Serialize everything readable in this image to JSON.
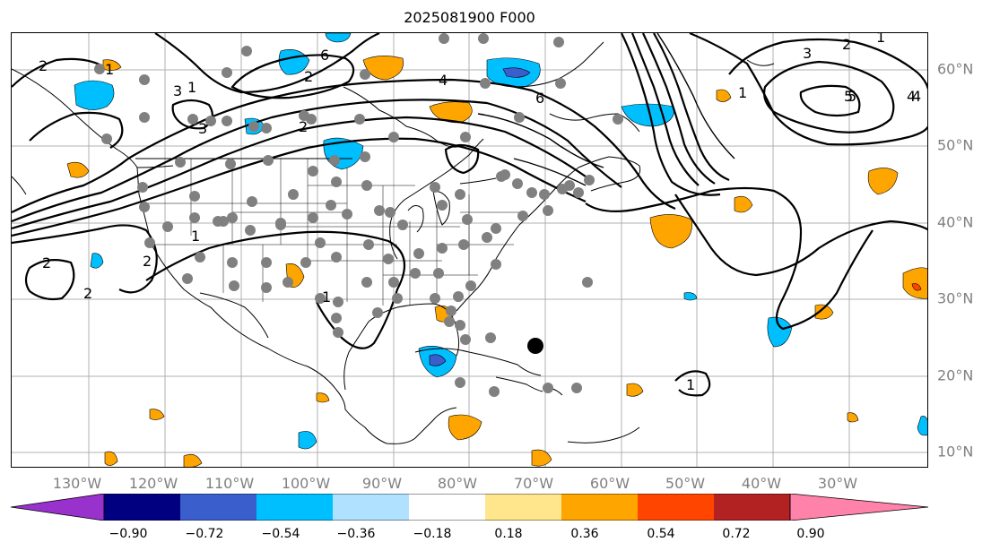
{
  "title": "2025081900 F000",
  "lon_labels": [
    "130°W",
    "120°W",
    "110°W",
    "100°W",
    "90°W",
    "80°W",
    "70°W",
    "60°W",
    "50°W",
    "40°W",
    "30°W"
  ],
  "lat_labels": [
    "60°N",
    "50°N",
    "40°N",
    "30°N",
    "20°N",
    "10°N"
  ],
  "contour_labels": [
    "1",
    "2",
    "3",
    "4",
    "5",
    "6",
    "2",
    "3",
    "4",
    "6",
    "2",
    "1",
    "3",
    "5",
    "4",
    "2",
    "1",
    "2",
    "2",
    "1",
    "1",
    "1",
    "2",
    "1"
  ],
  "colorbar": {
    "ticks": [
      "−0.90",
      "−0.72",
      "−0.54",
      "−0.36",
      "−0.18",
      "0.18",
      "0.36",
      "0.54",
      "0.72",
      "0.90"
    ],
    "colors": [
      "#9932cc",
      "#000080",
      "#3a5fcd",
      "#00bfff",
      "#b0e2ff",
      "#ffffff",
      "#ffe68c",
      "#ffa500",
      "#ff4500",
      "#b22222",
      "#ff82ab"
    ]
  }
}
